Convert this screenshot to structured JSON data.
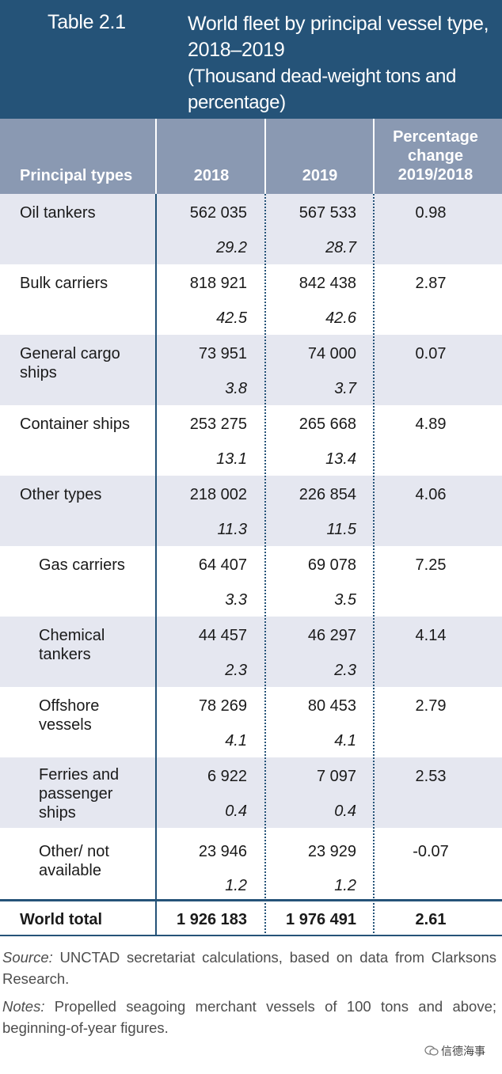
{
  "title": {
    "label": "Table 2.1",
    "main": "World fleet by principal vessel type, 2018–2019",
    "unit": "(Thousand dead-weight tons and percentage)"
  },
  "header": {
    "col_type": "Principal types",
    "col_2018": "2018",
    "col_2019": "2019",
    "col_pct": "Percentage change 2019/2018"
  },
  "rows": [
    {
      "type": "Oil tankers",
      "v2018": "562 035",
      "v2019": "567 533",
      "share2018": "29.2",
      "share2019": "28.7",
      "pct": "0.98"
    },
    {
      "type": "Bulk carriers",
      "v2018": "818 921",
      "v2019": "842 438",
      "share2018": "42.5",
      "share2019": "42.6",
      "pct": "2.87"
    },
    {
      "type": "General cargo ships",
      "v2018": "73 951",
      "v2019": "74 000",
      "share2018": "3.8",
      "share2019": "3.7",
      "pct": "0.07"
    },
    {
      "type": "Container ships",
      "v2018": "253 275",
      "v2019": "265 668",
      "share2018": "13.1",
      "share2019": "13.4",
      "pct": "4.89"
    },
    {
      "type": "Other types",
      "v2018": "218 002",
      "v2019": "226 854",
      "share2018": "11.3",
      "share2019": "11.5",
      "pct": "4.06"
    },
    {
      "type": "Gas carriers",
      "v2018": "64 407",
      "v2019": "69 078",
      "share2018": "3.3",
      "share2019": "3.5",
      "pct": "7.25"
    },
    {
      "type": "Chemical tankers",
      "v2018": "44 457",
      "v2019": "46 297",
      "share2018": "2.3",
      "share2019": "2.3",
      "pct": "4.14"
    },
    {
      "type": "Offshore vessels",
      "v2018": "78 269",
      "v2019": "80 453",
      "share2018": "4.1",
      "share2019": "4.1",
      "pct": "2.79"
    },
    {
      "type": "Ferries and passenger ships",
      "v2018": "6 922",
      "v2019": "7 097",
      "share2018": "0.4",
      "share2019": "0.4",
      "pct": "2.53"
    },
    {
      "type": "Other/ not available",
      "v2018": "23 946",
      "v2019": "23 929",
      "share2018": "1.2",
      "share2019": "1.2",
      "pct": "-0.07"
    }
  ],
  "total": {
    "type": "World total",
    "v2018": "1 926 183",
    "v2019": "1 976 491",
    "pct": "2.61"
  },
  "source": {
    "label": "Source:",
    "text": "UNCTAD secretariat calculations, based on data from Clarksons Research."
  },
  "notes": {
    "label": "Notes:",
    "text": "Propelled seagoing merchant vessels of 100 tons and above; beginning-of-year figures."
  },
  "watermark": "信德海事"
}
